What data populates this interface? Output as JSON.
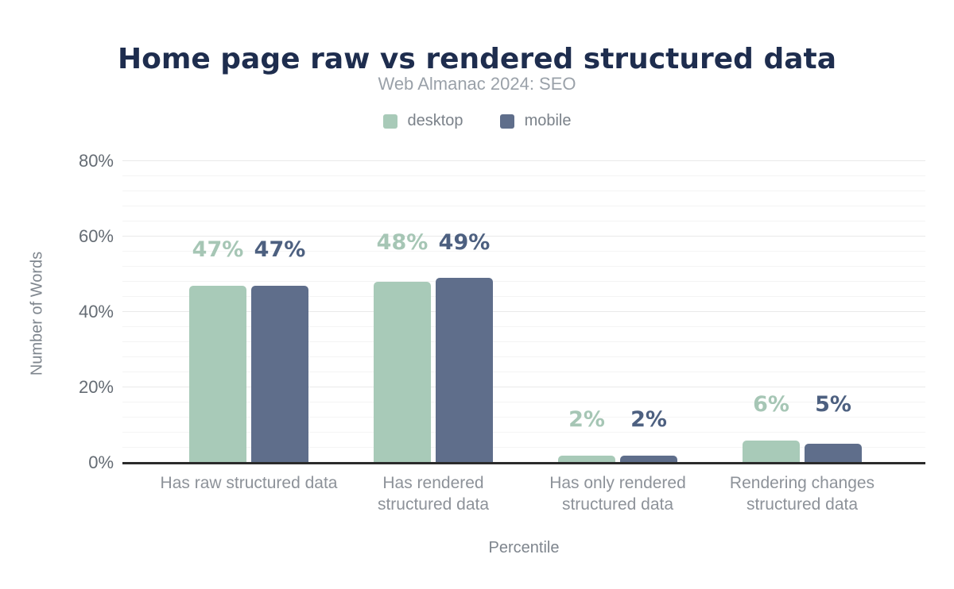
{
  "chart_data": {
    "type": "bar",
    "title": "Home page raw vs rendered structured data",
    "subtitle": "Web Almanac 2024: SEO",
    "categories": [
      "Has raw structured data",
      "Has rendered structured data",
      "Has only rendered structured data",
      "Rendering changes structured data"
    ],
    "series": [
      {
        "name": "desktop",
        "color": "#a8cab8",
        "label_color": "#a6c6b5",
        "values": [
          47,
          48,
          2,
          6
        ]
      },
      {
        "name": "mobile",
        "color": "#5f6e8b",
        "label_color": "#4d6080",
        "values": [
          47,
          49,
          2,
          5
        ]
      }
    ],
    "value_suffix": "%",
    "x_axis": {
      "title": "Percentile"
    },
    "y_axis": {
      "title": "Number of Words",
      "max": 80,
      "minor_step": 4,
      "ticks": [
        {
          "value": 0,
          "label": "0%"
        },
        {
          "value": 20,
          "label": "20%"
        },
        {
          "value": 40,
          "label": "40%"
        },
        {
          "value": 60,
          "label": "60%"
        },
        {
          "value": 80,
          "label": "80%"
        }
      ]
    },
    "legend_position": "top",
    "grid": true
  },
  "colors": {
    "background": "#ffffff",
    "title": "#1e2d4e",
    "subtitle": "#9aa1a9",
    "legend_text": "#7b828a",
    "tick_text": "#656c74",
    "category_text": "#8d9299",
    "axis_title_text": "#7e858d",
    "axis_line": "#2b2b2b",
    "grid_minor": "#f4f4f4",
    "grid_major": "#e9e9e9"
  }
}
